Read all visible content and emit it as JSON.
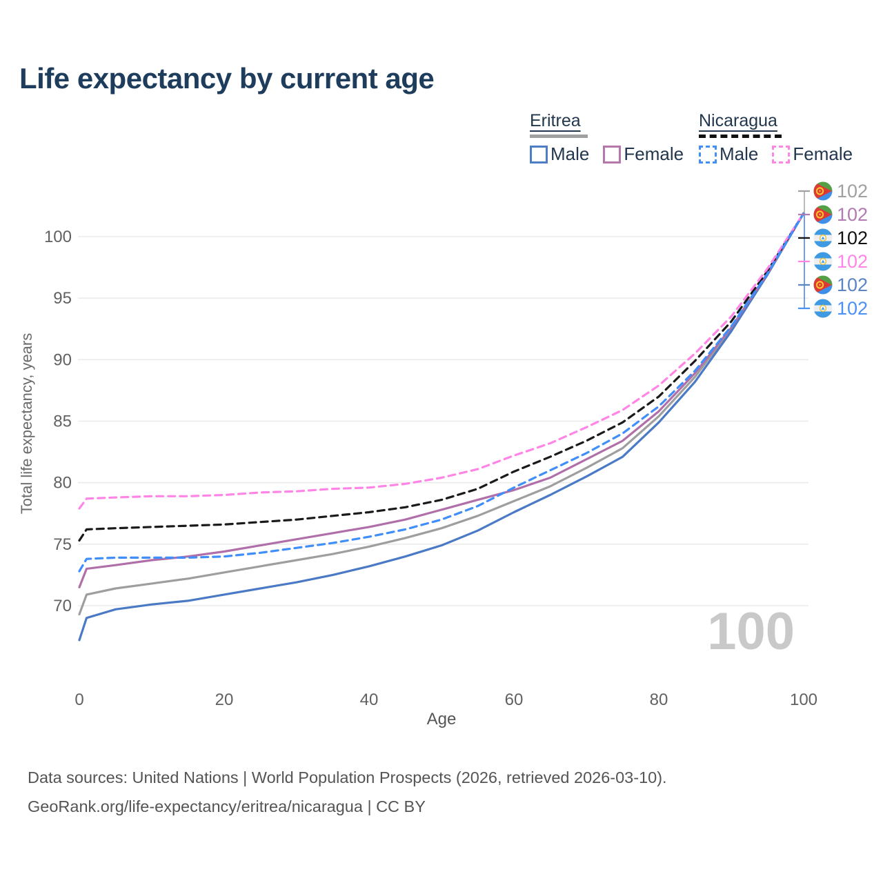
{
  "title": "Life expectancy by current age",
  "legend": {
    "groups": [
      {
        "label": "Eritrea",
        "line_style": "solid",
        "line_color": "#a0a0a0",
        "items": [
          {
            "label": "Male",
            "box_color": "#4d7ec2",
            "box_style": "solid"
          },
          {
            "label": "Female",
            "box_color": "#b478ae",
            "box_style": "solid"
          }
        ]
      },
      {
        "label": "Nicaragua",
        "line_style": "dashed",
        "line_color": "#111111",
        "items": [
          {
            "label": "Male",
            "box_color": "#3f8efa",
            "box_style": "dashed"
          },
          {
            "label": "Female",
            "box_color": "#ff85e6",
            "box_style": "dashed"
          }
        ]
      }
    ]
  },
  "axis": {
    "x_label": "Age",
    "y_label": "Total life expectancy, years"
  },
  "watermark": "100",
  "chart_data": {
    "type": "line",
    "title": "Life expectancy by current age",
    "xlabel": "Age",
    "ylabel": "Total life expectancy, years",
    "xlim": [
      0,
      100
    ],
    "ylim": [
      65.5,
      105
    ],
    "x_ticks": [
      0,
      20,
      40,
      60,
      80,
      100
    ],
    "y_ticks": [
      70,
      75,
      80,
      85,
      90,
      95,
      100
    ],
    "grid": "horizontal",
    "legend_position": "top-right",
    "x": [
      0,
      1,
      5,
      10,
      15,
      20,
      25,
      30,
      35,
      40,
      45,
      50,
      55,
      60,
      65,
      70,
      75,
      80,
      85,
      90,
      95,
      100
    ],
    "series": [
      {
        "id": "eritrea-total",
        "name": "Eritrea Total",
        "country": "Eritrea",
        "sex": "Both",
        "style": "solid",
        "color": "#9e9e9e",
        "values": [
          69.3,
          70.9,
          71.4,
          71.8,
          72.2,
          72.7,
          73.2,
          73.7,
          74.2,
          74.8,
          75.5,
          76.3,
          77.3,
          78.5,
          79.7,
          81.2,
          82.8,
          85.4,
          88.6,
          92.5,
          97.0,
          101.9
        ]
      },
      {
        "id": "eritrea-male",
        "name": "Eritrea Male",
        "country": "Eritrea",
        "sex": "Male",
        "style": "solid",
        "color": "#4a79c5",
        "values": [
          67.2,
          69.0,
          69.7,
          70.1,
          70.4,
          70.9,
          71.4,
          71.9,
          72.5,
          73.2,
          74.0,
          74.9,
          76.1,
          77.6,
          79.0,
          80.5,
          82.1,
          84.9,
          88.2,
          92.3,
          96.9,
          101.9
        ]
      },
      {
        "id": "eritrea-female",
        "name": "Eritrea Female",
        "country": "Eritrea",
        "sex": "Female",
        "style": "solid",
        "color": "#b06fa8",
        "values": [
          71.5,
          73.0,
          73.3,
          73.7,
          74.0,
          74.4,
          74.9,
          75.4,
          75.9,
          76.4,
          77.0,
          77.8,
          78.6,
          79.4,
          80.4,
          81.9,
          83.4,
          85.8,
          88.9,
          92.6,
          97.0,
          101.9
        ]
      },
      {
        "id": "nicaragua-total",
        "name": "Nicaragua Total",
        "country": "Nicaragua",
        "sex": "Both",
        "style": "dashed",
        "color": "#1a1a1a",
        "values": [
          75.3,
          76.2,
          76.3,
          76.4,
          76.5,
          76.6,
          76.8,
          77.0,
          77.3,
          77.6,
          78.0,
          78.6,
          79.5,
          80.9,
          82.1,
          83.4,
          84.9,
          87.0,
          89.9,
          93.1,
          97.2,
          101.9
        ]
      },
      {
        "id": "nicaragua-female",
        "name": "Nicaragua Female",
        "country": "Nicaragua",
        "sex": "Female",
        "style": "dashed",
        "color": "#ff85e6",
        "values": [
          77.9,
          78.7,
          78.8,
          78.9,
          78.9,
          79.0,
          79.2,
          79.3,
          79.5,
          79.6,
          79.9,
          80.4,
          81.1,
          82.2,
          83.2,
          84.5,
          85.9,
          87.9,
          90.5,
          93.5,
          97.4,
          101.9
        ]
      },
      {
        "id": "nicaragua-male",
        "name": "Nicaragua Male",
        "country": "Nicaragua",
        "sex": "Male",
        "style": "dashed",
        "color": "#3f8efa",
        "values": [
          72.8,
          73.8,
          73.9,
          73.9,
          73.9,
          74.0,
          74.3,
          74.7,
          75.1,
          75.6,
          76.2,
          77.0,
          78.1,
          79.6,
          81.0,
          82.4,
          84.0,
          86.2,
          89.1,
          92.7,
          97.0,
          101.9
        ]
      }
    ],
    "hovered_age": "100"
  },
  "end_labels": [
    {
      "series": "Eritrea Total",
      "flag": "eritrea",
      "value": "102",
      "color": "#a0a0a0"
    },
    {
      "series": "Eritrea Female",
      "flag": "eritrea",
      "value": "102",
      "color": "#b07bb0"
    },
    {
      "series": "Nicaragua Total",
      "flag": "nicaragua",
      "value": "102",
      "color": "#111111"
    },
    {
      "series": "Nicaragua Female",
      "flag": "nicaragua",
      "value": "102",
      "color": "#ff85e6"
    },
    {
      "series": "Eritrea Male",
      "flag": "eritrea",
      "value": "102",
      "color": "#5b84c4"
    },
    {
      "series": "Nicaragua Male",
      "flag": "nicaragua",
      "value": "102",
      "color": "#4a90f5"
    }
  ],
  "footer": {
    "line1": "Data sources: United Nations | World Population Prospects (2026, retrieved 2026-03-10).",
    "line2": "GeoRank.org/life-expectancy/eritrea/nicaragua | CC BY"
  }
}
